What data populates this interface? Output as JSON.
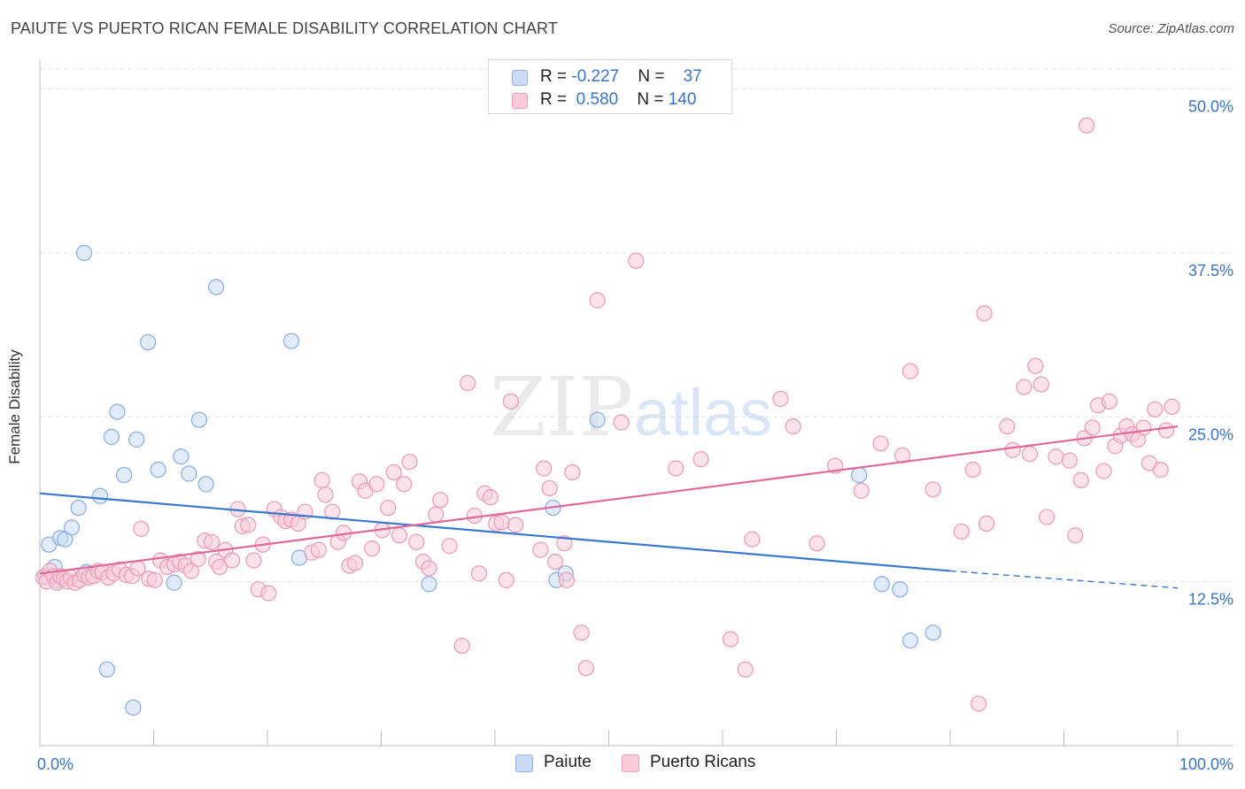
{
  "header": {
    "title": "PAIUTE VS PUERTO RICAN FEMALE DISABILITY CORRELATION CHART",
    "source": "Source: ZipAtlas.com"
  },
  "watermark": {
    "zip": "ZIP",
    "atlas": "atlas"
  },
  "legend_top": {
    "rows": [
      {
        "r_label": "R = ",
        "r_value": "-0.227",
        "n_label": "N = ",
        "n_value": "37"
      },
      {
        "r_label": "R = ",
        "r_value": "0.580",
        "n_label": "N = ",
        "n_value": "140"
      }
    ]
  },
  "legend_bottom": {
    "items": [
      "Paiute",
      "Puerto Ricans"
    ]
  },
  "chart_data": {
    "type": "scatter",
    "title": "PAIUTE VS PUERTO RICAN FEMALE DISABILITY CORRELATION CHART",
    "xlabel": "",
    "ylabel": "Female Disability",
    "xlim": [
      0,
      100
    ],
    "ylim": [
      0,
      51.5
    ],
    "x_tick_labels": [
      "0.0%",
      "100.0%"
    ],
    "y_ticks": [
      12.5,
      25.0,
      37.5,
      50.0
    ],
    "y_tick_labels": [
      "12.5%",
      "25.0%",
      "37.5%",
      "50.0%"
    ],
    "grid": "horizontal dashed",
    "legend_position": "top-center",
    "colors": {
      "paiute_fill": "#c9dbf5",
      "paiute_stroke": "#8fb2e3",
      "paiute_line": "#3a78d0",
      "pr_fill": "#f9cbd9",
      "pr_stroke": "#ec9fb8",
      "pr_line": "#e0699a",
      "tick_label": "#3b73c4"
    },
    "series": [
      {
        "name": "Paiute",
        "r": -0.227,
        "n": 37,
        "trend": {
          "x": [
            0,
            80
          ],
          "y": [
            19.2,
            13.3
          ],
          "dashed_extension_to": [
            100,
            12.0
          ]
        },
        "points": [
          [
            0.8,
            15.3
          ],
          [
            1.3,
            13.6
          ],
          [
            1.8,
            15.8
          ],
          [
            2.2,
            15.7
          ],
          [
            2.8,
            16.6
          ],
          [
            3.4,
            18.1
          ],
          [
            3.9,
            37.5
          ],
          [
            4.1,
            13.2
          ],
          [
            5.3,
            19.0
          ],
          [
            5.9,
            5.8
          ],
          [
            6.3,
            23.5
          ],
          [
            6.8,
            25.4
          ],
          [
            7.4,
            20.6
          ],
          [
            8.2,
            2.9
          ],
          [
            8.5,
            23.3
          ],
          [
            9.5,
            30.7
          ],
          [
            10.4,
            21.0
          ],
          [
            11.8,
            12.4
          ],
          [
            12.4,
            22.0
          ],
          [
            13.1,
            20.7
          ],
          [
            14.0,
            24.8
          ],
          [
            14.6,
            19.9
          ],
          [
            15.5,
            34.9
          ],
          [
            22.1,
            30.8
          ],
          [
            22.8,
            14.3
          ],
          [
            34.2,
            12.3
          ],
          [
            45.4,
            12.6
          ],
          [
            45.1,
            18.1
          ],
          [
            46.2,
            13.1
          ],
          [
            49.0,
            24.8
          ],
          [
            72.0,
            20.6
          ],
          [
            74.0,
            12.3
          ],
          [
            75.6,
            11.9
          ],
          [
            76.5,
            8.0
          ],
          [
            78.5,
            8.6
          ],
          [
            0.5,
            12.9
          ],
          [
            1.5,
            12.6
          ]
        ]
      },
      {
        "name": "Puerto Ricans",
        "r": 0.58,
        "n": 140,
        "trend": {
          "x": [
            0,
            100
          ],
          "y": [
            13.1,
            24.3
          ]
        },
        "points": [
          [
            0.3,
            12.8
          ],
          [
            0.6,
            12.5
          ],
          [
            0.9,
            13.3
          ],
          [
            1.2,
            12.9
          ],
          [
            1.5,
            12.4
          ],
          [
            1.8,
            12.9
          ],
          [
            2.1,
            12.7
          ],
          [
            2.4,
            12.5
          ],
          [
            2.7,
            12.8
          ],
          [
            3.1,
            12.4
          ],
          [
            3.5,
            12.6
          ],
          [
            3.9,
            13.0
          ],
          [
            4.3,
            12.8
          ],
          [
            4.7,
            12.9
          ],
          [
            5.1,
            13.3
          ],
          [
            5.5,
            13.2
          ],
          [
            6.0,
            12.8
          ],
          [
            6.5,
            13.1
          ],
          [
            7.0,
            13.4
          ],
          [
            7.6,
            13.0
          ],
          [
            8.1,
            12.9
          ],
          [
            8.6,
            13.5
          ],
          [
            8.9,
            16.5
          ],
          [
            9.6,
            12.7
          ],
          [
            10.1,
            12.6
          ],
          [
            10.6,
            14.1
          ],
          [
            11.2,
            13.6
          ],
          [
            11.8,
            13.8
          ],
          [
            12.3,
            14.0
          ],
          [
            12.8,
            13.7
          ],
          [
            13.3,
            13.3
          ],
          [
            13.9,
            14.2
          ],
          [
            14.5,
            15.6
          ],
          [
            15.1,
            15.5
          ],
          [
            15.5,
            14.0
          ],
          [
            15.8,
            13.6
          ],
          [
            16.3,
            14.9
          ],
          [
            16.9,
            14.1
          ],
          [
            17.4,
            18.0
          ],
          [
            17.8,
            16.7
          ],
          [
            18.3,
            16.8
          ],
          [
            18.8,
            14.1
          ],
          [
            19.2,
            11.9
          ],
          [
            19.6,
            15.3
          ],
          [
            20.1,
            11.6
          ],
          [
            20.6,
            18.0
          ],
          [
            21.2,
            17.4
          ],
          [
            21.6,
            17.1
          ],
          [
            22.1,
            17.2
          ],
          [
            22.7,
            16.9
          ],
          [
            23.3,
            17.8
          ],
          [
            23.9,
            14.7
          ],
          [
            24.5,
            14.9
          ],
          [
            24.8,
            20.2
          ],
          [
            25.1,
            19.1
          ],
          [
            25.7,
            17.8
          ],
          [
            26.2,
            15.5
          ],
          [
            26.7,
            16.2
          ],
          [
            27.2,
            13.7
          ],
          [
            27.7,
            13.9
          ],
          [
            28.1,
            20.1
          ],
          [
            28.6,
            19.4
          ],
          [
            29.2,
            15.0
          ],
          [
            29.6,
            19.9
          ],
          [
            30.1,
            16.4
          ],
          [
            30.6,
            18.1
          ],
          [
            31.1,
            20.8
          ],
          [
            31.6,
            16.0
          ],
          [
            32.0,
            19.9
          ],
          [
            32.5,
            21.6
          ],
          [
            33.1,
            15.5
          ],
          [
            33.7,
            14.0
          ],
          [
            34.2,
            13.5
          ],
          [
            34.8,
            17.6
          ],
          [
            35.2,
            18.7
          ],
          [
            36.0,
            15.2
          ],
          [
            37.1,
            7.6
          ],
          [
            37.6,
            27.6
          ],
          [
            38.2,
            17.5
          ],
          [
            38.6,
            13.1
          ],
          [
            39.1,
            19.2
          ],
          [
            39.6,
            18.9
          ],
          [
            40.1,
            16.9
          ],
          [
            40.6,
            17.0
          ],
          [
            41.0,
            12.6
          ],
          [
            41.4,
            26.2
          ],
          [
            41.8,
            16.8
          ],
          [
            44.0,
            14.9
          ],
          [
            44.3,
            21.1
          ],
          [
            44.8,
            19.6
          ],
          [
            45.3,
            14.0
          ],
          [
            46.1,
            15.4
          ],
          [
            46.3,
            12.6
          ],
          [
            46.8,
            20.8
          ],
          [
            47.6,
            8.6
          ],
          [
            48.0,
            5.9
          ],
          [
            49.0,
            33.9
          ],
          [
            51.1,
            24.6
          ],
          [
            52.4,
            36.9
          ],
          [
            55.9,
            21.1
          ],
          [
            58.1,
            21.8
          ],
          [
            60.7,
            8.1
          ],
          [
            62.0,
            5.8
          ],
          [
            62.6,
            15.7
          ],
          [
            65.1,
            26.4
          ],
          [
            66.2,
            24.3
          ],
          [
            68.3,
            15.4
          ],
          [
            69.9,
            21.3
          ],
          [
            72.2,
            19.4
          ],
          [
            73.9,
            23.0
          ],
          [
            75.8,
            22.1
          ],
          [
            76.5,
            28.5
          ],
          [
            78.5,
            19.5
          ],
          [
            81.0,
            16.3
          ],
          [
            82.0,
            21.0
          ],
          [
            82.5,
            3.2
          ],
          [
            83.0,
            32.9
          ],
          [
            83.2,
            16.9
          ],
          [
            85.0,
            24.3
          ],
          [
            85.5,
            22.5
          ],
          [
            86.5,
            27.3
          ],
          [
            87.0,
            22.2
          ],
          [
            87.5,
            28.9
          ],
          [
            88.0,
            27.5
          ],
          [
            88.5,
            17.4
          ],
          [
            89.3,
            22.0
          ],
          [
            90.5,
            21.7
          ],
          [
            91.0,
            16.0
          ],
          [
            91.5,
            20.2
          ],
          [
            91.8,
            23.4
          ],
          [
            92.5,
            24.2
          ],
          [
            93.0,
            25.9
          ],
          [
            93.5,
            20.9
          ],
          [
            94.0,
            26.2
          ],
          [
            94.5,
            22.8
          ],
          [
            95.0,
            23.6
          ],
          [
            95.5,
            24.3
          ],
          [
            96.0,
            23.7
          ],
          [
            96.5,
            23.3
          ],
          [
            97.0,
            24.2
          ],
          [
            97.5,
            21.5
          ],
          [
            98.0,
            25.6
          ],
          [
            98.5,
            21.0
          ],
          [
            99.0,
            24.0
          ],
          [
            99.5,
            25.8
          ],
          [
            92.0,
            47.2
          ]
        ]
      }
    ]
  }
}
